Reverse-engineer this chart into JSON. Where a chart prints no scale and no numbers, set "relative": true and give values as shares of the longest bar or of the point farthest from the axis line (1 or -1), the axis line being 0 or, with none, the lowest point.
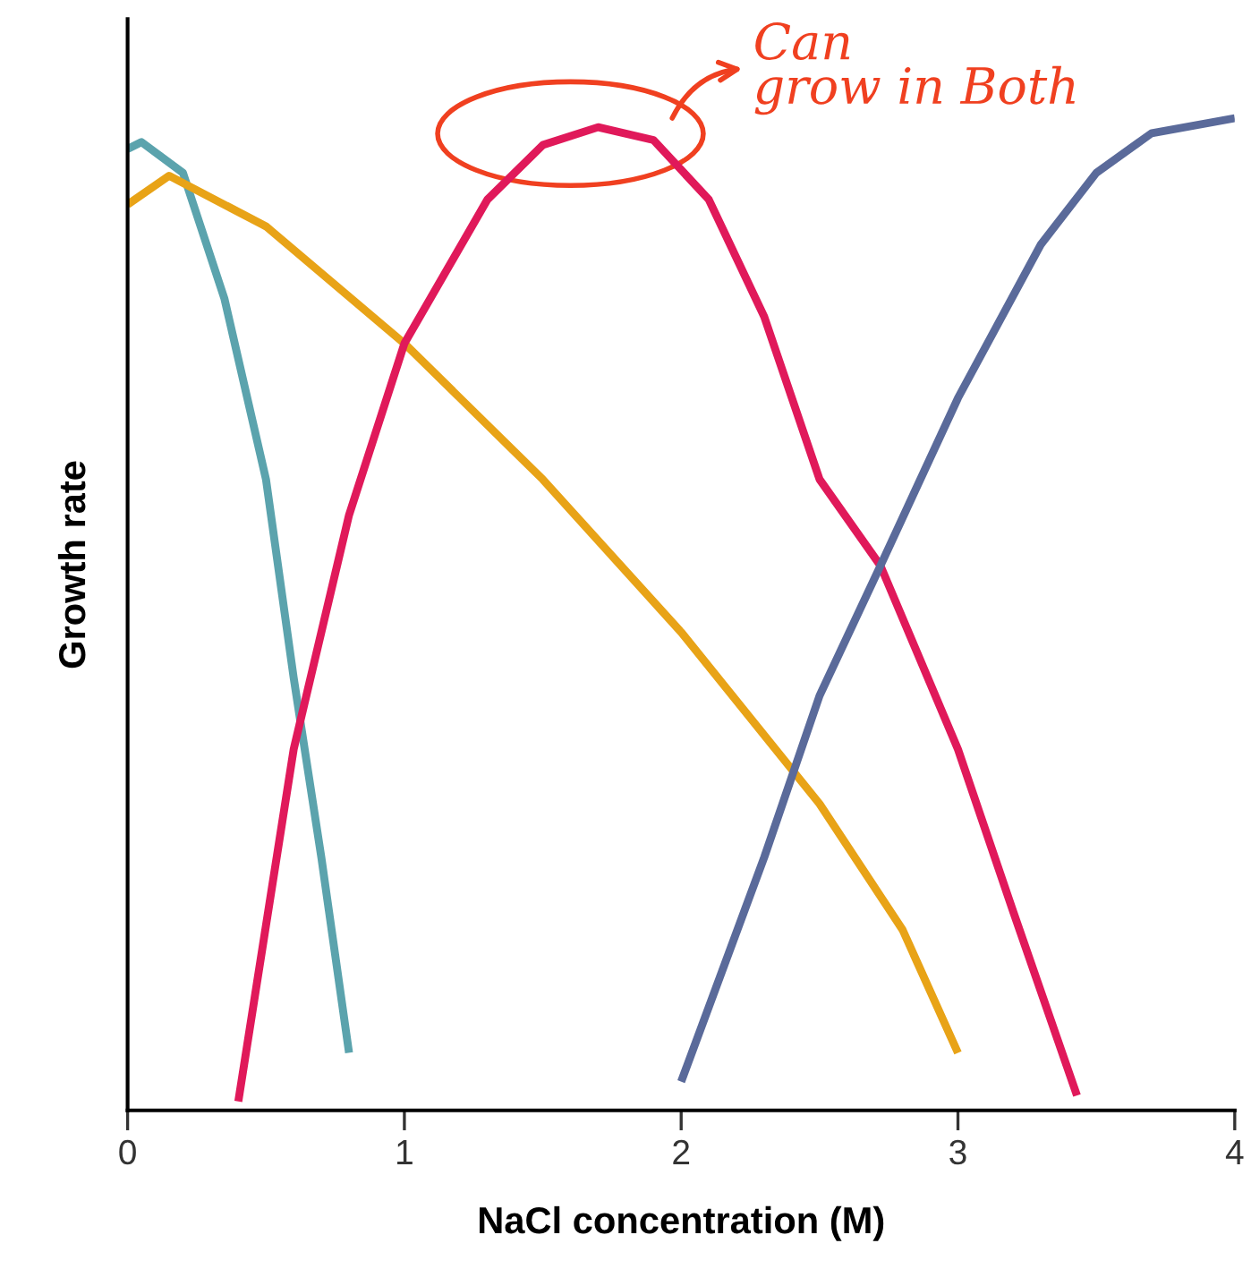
{
  "chart_data": {
    "type": "line",
    "relative": true,
    "xlabel": "NaCl concentration (M)",
    "ylabel": "Growth rate",
    "xlim": [
      0,
      4
    ],
    "xticks": [
      0,
      1,
      2,
      3,
      4
    ],
    "tick_labels": "x",
    "grid": false,
    "marker": "none",
    "line_style": "solid",
    "annotations": [
      "Can\ngrow in Both"
    ],
    "series": [
      {
        "color": "#5ba3ad",
        "x": [
          0,
          0.05,
          0.2,
          0.35,
          0.5,
          0.6,
          0.7,
          0.8
        ],
        "values": [
          0.969,
          0.976,
          0.945,
          0.818,
          0.636,
          0.436,
          0.255,
          0.058
        ]
      },
      {
        "color": "#e8a317",
        "x": [
          0,
          0.15,
          0.5,
          1,
          1.5,
          2,
          2.5,
          2.8,
          3
        ],
        "values": [
          0.913,
          0.942,
          0.891,
          0.773,
          0.636,
          0.482,
          0.309,
          0.182,
          0.058
        ]
      },
      {
        "color": "#e0195a",
        "x": [
          0.4,
          0.6,
          0.8,
          1,
          1.3,
          1.5,
          1.7,
          1.9,
          2.1,
          2.3,
          2.5,
          2.72,
          3,
          3.2,
          3.43
        ],
        "values": [
          0.009,
          0.364,
          0.6,
          0.773,
          0.918,
          0.973,
          0.991,
          0.978,
          0.918,
          0.8,
          0.636,
          0.549,
          0.364,
          0.2,
          0.015
        ]
      },
      {
        "color": "#5a6a9a",
        "x": [
          2,
          2.3,
          2.5,
          2.72,
          3,
          3.3,
          3.5,
          3.7,
          4
        ],
        "values": [
          0.029,
          0.255,
          0.418,
          0.549,
          0.718,
          0.873,
          0.945,
          0.985,
          1
        ]
      }
    ]
  }
}
